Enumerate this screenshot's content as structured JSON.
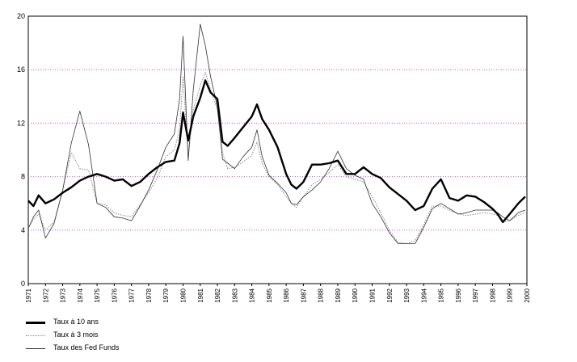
{
  "chart_data": {
    "type": "line",
    "title": "",
    "xlabel": "",
    "ylabel": "",
    "xlim": [
      1971,
      2000
    ],
    "ylim": [
      0,
      20
    ],
    "y_ticks": [
      "0",
      "4",
      "8",
      "12",
      "16",
      "20"
    ],
    "x_tick_labels": [
      "1971",
      "1972",
      "1973",
      "1974",
      "1975",
      "1976",
      "1977",
      "1978",
      "1979",
      "1980",
      "1981",
      "1982",
      "1983",
      "1984",
      "1985",
      "1986",
      "1987",
      "1988",
      "1989",
      "1990",
      "1991",
      "1992",
      "1993",
      "1994",
      "1995",
      "1996",
      "1997",
      "1998",
      "1999",
      "2000"
    ],
    "grid": "horizontal dotted lines at 4, 8, 12, 16",
    "legend_position": "bottom-left",
    "series": [
      {
        "name": "Taux à 10 ans",
        "color": "#000000",
        "style": "thick-solid",
        "x": [
          1971.0,
          1971.3,
          1971.6,
          1972.0,
          1972.5,
          1973.0,
          1973.5,
          1974.0,
          1974.5,
          1975.0,
          1975.5,
          1976.0,
          1976.5,
          1977.0,
          1977.5,
          1978.0,
          1978.5,
          1979.0,
          1979.5,
          1979.8,
          1980.0,
          1980.3,
          1980.6,
          1981.0,
          1981.3,
          1981.6,
          1982.0,
          1982.3,
          1982.6,
          1983.0,
          1983.5,
          1984.0,
          1984.3,
          1984.6,
          1985.0,
          1985.5,
          1986.0,
          1986.3,
          1986.6,
          1987.0,
          1987.5,
          1988.0,
          1988.5,
          1989.0,
          1989.5,
          1990.0,
          1990.5,
          1991.0,
          1991.5,
          1992.0,
          1992.5,
          1993.0,
          1993.5,
          1994.0,
          1994.5,
          1995.0,
          1995.5,
          1996.0,
          1996.5,
          1997.0,
          1997.5,
          1998.0,
          1998.3,
          1998.6,
          1999.0,
          1999.5,
          1999.9
        ],
        "values": [
          6.2,
          5.8,
          6.6,
          6.0,
          6.3,
          6.8,
          7.2,
          7.7,
          8.0,
          8.2,
          8.0,
          7.7,
          7.8,
          7.3,
          7.6,
          8.2,
          8.7,
          9.1,
          9.2,
          10.5,
          12.8,
          10.7,
          12.5,
          13.9,
          15.2,
          14.3,
          13.8,
          10.6,
          10.3,
          10.9,
          11.7,
          12.5,
          13.4,
          12.3,
          11.5,
          10.2,
          8.2,
          7.4,
          7.1,
          7.6,
          8.9,
          8.9,
          9.0,
          9.2,
          8.2,
          8.2,
          8.7,
          8.2,
          7.9,
          7.2,
          6.7,
          6.2,
          5.5,
          5.8,
          7.1,
          7.8,
          6.4,
          6.2,
          6.6,
          6.5,
          6.1,
          5.6,
          5.2,
          4.6,
          5.2,
          6.0,
          6.5
        ]
      },
      {
        "name": "Taux à 3 mois",
        "color": "#888888",
        "style": "thin-dotted",
        "x": [
          1971.0,
          1971.3,
          1971.6,
          1972.0,
          1972.5,
          1973.0,
          1973.5,
          1974.0,
          1974.5,
          1975.0,
          1975.5,
          1976.0,
          1976.5,
          1977.0,
          1977.5,
          1978.0,
          1978.5,
          1979.0,
          1979.5,
          1979.8,
          1980.0,
          1980.3,
          1980.6,
          1981.0,
          1981.3,
          1981.6,
          1982.0,
          1982.3,
          1982.6,
          1983.0,
          1983.5,
          1984.0,
          1984.3,
          1984.6,
          1985.0,
          1985.5,
          1986.0,
          1986.3,
          1986.6,
          1987.0,
          1987.5,
          1988.0,
          1988.5,
          1989.0,
          1989.5,
          1990.0,
          1990.5,
          1991.0,
          1991.5,
          1992.0,
          1992.5,
          1993.0,
          1993.5,
          1994.0,
          1994.5,
          1995.0,
          1995.5,
          1996.0,
          1996.5,
          1997.0,
          1997.5,
          1998.0,
          1998.3,
          1998.6,
          1999.0,
          1999.5,
          1999.9
        ],
        "values": [
          4.2,
          4.8,
          5.2,
          4.0,
          4.6,
          7.0,
          9.8,
          8.6,
          8.5,
          6.0,
          5.9,
          5.3,
          5.1,
          5.0,
          5.9,
          6.8,
          7.9,
          9.5,
          10.0,
          11.5,
          15.5,
          9.5,
          13.0,
          14.8,
          15.8,
          14.5,
          13.0,
          9.8,
          8.6,
          8.7,
          9.1,
          9.6,
          10.6,
          9.0,
          8.0,
          7.4,
          6.5,
          6.0,
          5.7,
          6.5,
          7.4,
          7.8,
          8.3,
          8.9,
          8.0,
          7.8,
          7.6,
          6.5,
          5.3,
          4.0,
          3.1,
          3.0,
          3.2,
          4.4,
          5.8,
          5.8,
          5.5,
          5.2,
          5.1,
          5.2,
          5.3,
          5.2,
          5.1,
          4.6,
          4.7,
          5.1,
          5.3
        ]
      },
      {
        "name": "Taux des Fed Funds",
        "color": "#333333",
        "style": "thin-solid",
        "x": [
          1971.0,
          1971.3,
          1971.6,
          1972.0,
          1972.5,
          1973.0,
          1973.5,
          1974.0,
          1974.5,
          1975.0,
          1975.5,
          1976.0,
          1976.5,
          1977.0,
          1977.5,
          1978.0,
          1978.5,
          1979.0,
          1979.5,
          1979.8,
          1980.0,
          1980.3,
          1980.6,
          1981.0,
          1981.3,
          1981.6,
          1982.0,
          1982.3,
          1982.6,
          1983.0,
          1983.5,
          1984.0,
          1984.3,
          1984.6,
          1985.0,
          1985.5,
          1986.0,
          1986.3,
          1986.6,
          1987.0,
          1987.5,
          1988.0,
          1988.5,
          1989.0,
          1989.5,
          1990.0,
          1990.5,
          1991.0,
          1991.5,
          1992.0,
          1992.5,
          1993.0,
          1993.5,
          1994.0,
          1994.5,
          1995.0,
          1995.5,
          1996.0,
          1996.5,
          1997.0,
          1997.5,
          1998.0,
          1998.3,
          1998.6,
          1999.0,
          1999.5,
          1999.9
        ],
        "values": [
          4.1,
          5.0,
          5.5,
          3.4,
          4.5,
          7.0,
          10.5,
          12.9,
          10.4,
          6.0,
          5.7,
          5.0,
          4.9,
          4.7,
          5.8,
          7.0,
          8.5,
          10.2,
          11.2,
          13.8,
          18.5,
          9.2,
          14.5,
          19.4,
          17.8,
          15.5,
          13.2,
          9.3,
          9.0,
          8.6,
          9.5,
          10.2,
          11.5,
          9.5,
          8.1,
          7.5,
          6.8,
          6.0,
          5.9,
          6.5,
          7.0,
          7.6,
          8.6,
          9.9,
          8.6,
          8.1,
          7.8,
          6.0,
          5.0,
          3.8,
          3.0,
          3.0,
          3.0,
          4.2,
          5.6,
          6.0,
          5.6,
          5.2,
          5.3,
          5.5,
          5.5,
          5.5,
          5.3,
          5.0,
          4.7,
          5.3,
          5.5
        ]
      }
    ]
  }
}
